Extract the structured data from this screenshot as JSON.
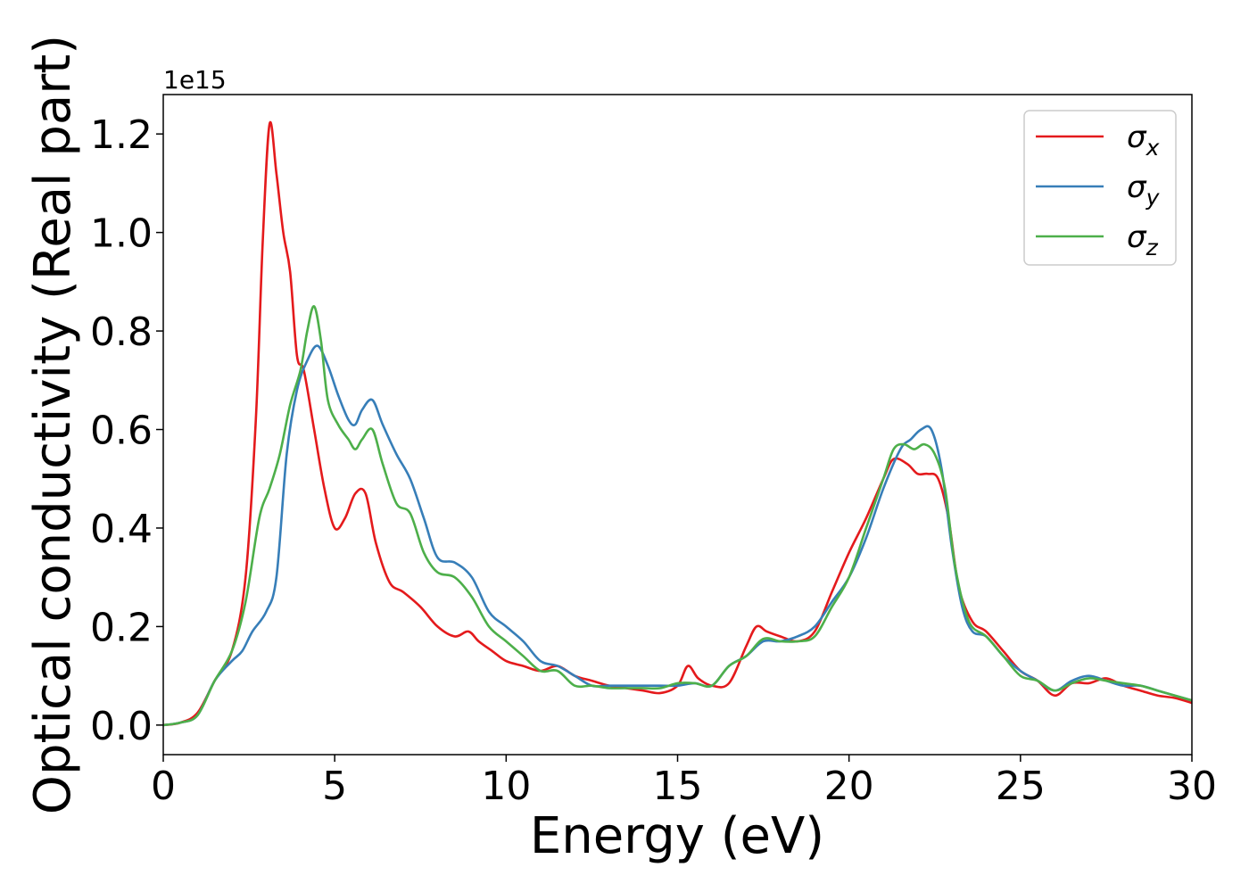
{
  "chart_data": {
    "type": "line",
    "xlabel": "Energy (eV)",
    "ylabel": "Optical conductivity (Real part)",
    "y_offset_label": "1e15",
    "y_scale_factor": 1000000000000000.0,
    "xlim": [
      0,
      30
    ],
    "ylim": [
      -0.06,
      1.28
    ],
    "xticks": [
      0,
      5,
      10,
      15,
      20,
      25,
      30
    ],
    "xtick_labels": [
      "0",
      "5",
      "10",
      "15",
      "20",
      "25",
      "30"
    ],
    "yticks": [
      0.0,
      0.2,
      0.4,
      0.6,
      0.8,
      1.0,
      1.2
    ],
    "ytick_labels": [
      "0.0",
      "0.2",
      "0.4",
      "0.6",
      "0.8",
      "1.0",
      "1.2"
    ],
    "grid": false,
    "legend_position": "top-right",
    "series": [
      {
        "name": "σx",
        "legend_symbol": "σ",
        "legend_subscript": "x",
        "color": "#e41a1c",
        "x": [
          0,
          0.5,
          1.0,
          1.5,
          2.0,
          2.4,
          2.7,
          2.9,
          3.1,
          3.3,
          3.5,
          3.7,
          3.9,
          4.1,
          4.4,
          4.7,
          5.0,
          5.3,
          5.6,
          5.9,
          6.2,
          6.6,
          7.0,
          7.5,
          8.0,
          8.5,
          8.9,
          9.2,
          9.6,
          10.0,
          10.5,
          11.0,
          11.5,
          12.0,
          12.5,
          13.0,
          13.5,
          14.0,
          14.5,
          15.0,
          15.3,
          15.6,
          16.0,
          16.5,
          17.0,
          17.3,
          17.6,
          18.0,
          18.5,
          19.0,
          19.5,
          20.0,
          20.5,
          21.0,
          21.3,
          21.7,
          22.0,
          22.3,
          22.6,
          22.9,
          23.2,
          23.6,
          24.0,
          24.5,
          25.0,
          25.5,
          26.0,
          26.5,
          27.0,
          27.5,
          28.0,
          28.5,
          29.0,
          29.5,
          30.0
        ],
        "y": [
          0.0,
          0.005,
          0.025,
          0.09,
          0.15,
          0.3,
          0.62,
          0.98,
          1.22,
          1.12,
          1.0,
          0.92,
          0.75,
          0.72,
          0.6,
          0.48,
          0.4,
          0.42,
          0.47,
          0.47,
          0.37,
          0.29,
          0.27,
          0.24,
          0.2,
          0.18,
          0.19,
          0.17,
          0.15,
          0.13,
          0.12,
          0.11,
          0.12,
          0.1,
          0.09,
          0.08,
          0.075,
          0.07,
          0.065,
          0.08,
          0.12,
          0.095,
          0.08,
          0.085,
          0.16,
          0.2,
          0.19,
          0.18,
          0.17,
          0.19,
          0.27,
          0.35,
          0.42,
          0.5,
          0.54,
          0.53,
          0.51,
          0.51,
          0.5,
          0.42,
          0.28,
          0.21,
          0.19,
          0.15,
          0.11,
          0.09,
          0.06,
          0.085,
          0.085,
          0.095,
          0.08,
          0.07,
          0.06,
          0.055,
          0.045
        ]
      },
      {
        "name": "σy",
        "legend_symbol": "σ",
        "legend_subscript": "y",
        "color": "#377eb8",
        "x": [
          0,
          0.5,
          1.0,
          1.5,
          2.0,
          2.3,
          2.6,
          3.0,
          3.3,
          3.6,
          3.9,
          4.2,
          4.5,
          4.8,
          5.1,
          5.4,
          5.6,
          5.8,
          6.1,
          6.4,
          6.8,
          7.2,
          7.6,
          8.0,
          8.5,
          9.0,
          9.5,
          10.0,
          10.5,
          11.0,
          11.5,
          12.0,
          12.5,
          13.0,
          13.5,
          14.0,
          14.5,
          15.0,
          15.5,
          16.0,
          16.5,
          17.0,
          17.5,
          18.0,
          18.5,
          19.0,
          19.5,
          20.0,
          20.5,
          21.0,
          21.5,
          21.8,
          22.1,
          22.4,
          22.7,
          23.0,
          23.3,
          23.6,
          24.0,
          24.5,
          25.0,
          25.5,
          26.0,
          26.5,
          27.0,
          27.5,
          28.0,
          28.5,
          29.0,
          29.5,
          30.0
        ],
        "y": [
          0.0,
          0.005,
          0.02,
          0.09,
          0.13,
          0.15,
          0.19,
          0.23,
          0.3,
          0.55,
          0.68,
          0.74,
          0.77,
          0.73,
          0.67,
          0.62,
          0.61,
          0.64,
          0.66,
          0.61,
          0.55,
          0.5,
          0.42,
          0.34,
          0.33,
          0.3,
          0.23,
          0.2,
          0.17,
          0.13,
          0.12,
          0.1,
          0.08,
          0.08,
          0.08,
          0.08,
          0.08,
          0.08,
          0.085,
          0.08,
          0.12,
          0.14,
          0.17,
          0.17,
          0.18,
          0.2,
          0.25,
          0.3,
          0.38,
          0.48,
          0.56,
          0.58,
          0.6,
          0.6,
          0.52,
          0.36,
          0.24,
          0.19,
          0.18,
          0.14,
          0.11,
          0.09,
          0.07,
          0.09,
          0.1,
          0.09,
          0.08,
          0.08,
          0.07,
          0.06,
          0.05
        ]
      },
      {
        "name": "σz",
        "legend_symbol": "σ",
        "legend_subscript": "z",
        "color": "#4daf4a",
        "x": [
          0,
          0.5,
          1.0,
          1.5,
          2.0,
          2.4,
          2.8,
          3.1,
          3.4,
          3.7,
          4.0,
          4.2,
          4.4,
          4.6,
          4.8,
          5.1,
          5.4,
          5.6,
          5.8,
          6.1,
          6.4,
          6.8,
          7.2,
          7.6,
          8.0,
          8.5,
          9.0,
          9.5,
          10.0,
          10.5,
          11.0,
          11.5,
          12.0,
          12.5,
          13.0,
          13.5,
          14.0,
          14.5,
          15.0,
          15.5,
          16.0,
          16.5,
          17.0,
          17.5,
          18.0,
          18.5,
          19.0,
          19.5,
          20.0,
          20.5,
          21.0,
          21.3,
          21.6,
          21.9,
          22.2,
          22.5,
          22.8,
          23.1,
          23.5,
          24.0,
          24.5,
          25.0,
          25.5,
          26.0,
          26.5,
          27.0,
          27.5,
          28.0,
          28.5,
          29.0,
          29.5,
          30.0
        ],
        "y": [
          0.0,
          0.005,
          0.02,
          0.09,
          0.15,
          0.25,
          0.42,
          0.48,
          0.55,
          0.65,
          0.72,
          0.8,
          0.85,
          0.78,
          0.66,
          0.61,
          0.58,
          0.56,
          0.58,
          0.6,
          0.53,
          0.45,
          0.43,
          0.35,
          0.31,
          0.3,
          0.26,
          0.2,
          0.17,
          0.14,
          0.11,
          0.11,
          0.08,
          0.08,
          0.075,
          0.075,
          0.075,
          0.075,
          0.085,
          0.085,
          0.08,
          0.12,
          0.14,
          0.175,
          0.17,
          0.17,
          0.18,
          0.24,
          0.3,
          0.4,
          0.5,
          0.56,
          0.57,
          0.56,
          0.57,
          0.55,
          0.48,
          0.32,
          0.21,
          0.18,
          0.14,
          0.1,
          0.09,
          0.07,
          0.085,
          0.095,
          0.09,
          0.085,
          0.08,
          0.07,
          0.06,
          0.05
        ]
      }
    ]
  }
}
